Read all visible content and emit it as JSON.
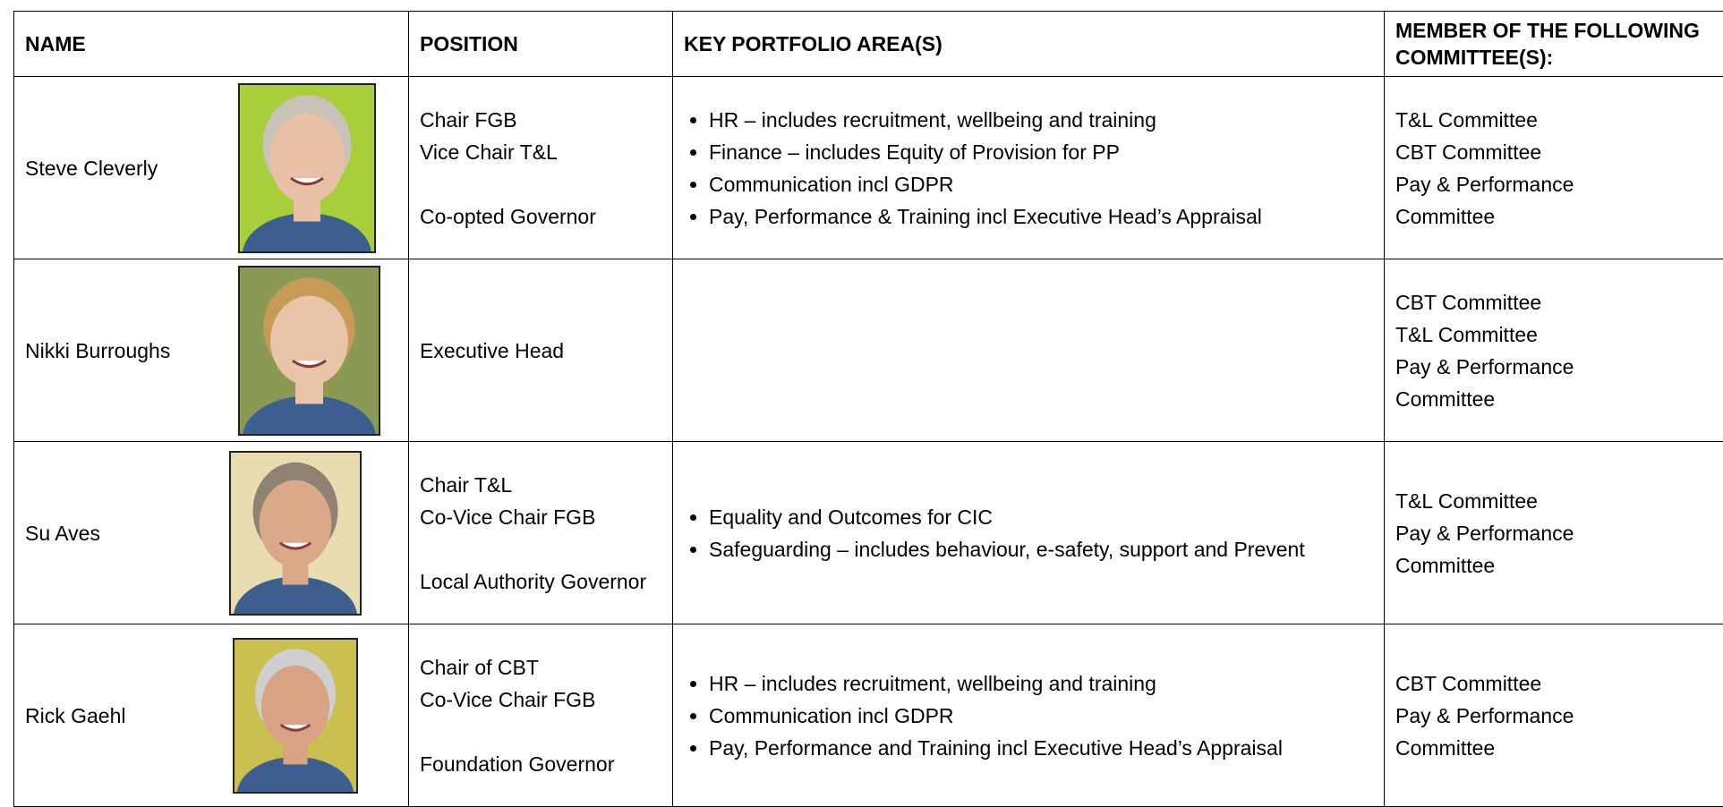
{
  "table": {
    "headers": [
      "NAME",
      "POSITION",
      "KEY PORTFOLIO AREA(S)",
      "MEMBER OF THE FOLLOWING COMMITTEE(S):"
    ],
    "rows": [
      {
        "name": "Steve Cleverly",
        "roles": [
          "Chair FGB",
          "Vice Chair T&L"
        ],
        "category": "Co-opted Governor",
        "portfolio": [
          "HR – includes recruitment, wellbeing and training",
          "Finance – includes Equity of Provision for PP",
          "Communication incl GDPR",
          "Pay, Performance & Training incl Executive Head’s Appraisal"
        ],
        "committees": [
          "T&L Committee",
          "CBT Committee",
          "Pay & Performance Committee"
        ]
      },
      {
        "name": "Nikki Burroughs",
        "roles": [
          "Executive Head"
        ],
        "committees": [
          "CBT Committee",
          "T&L Committee",
          "Pay & Performance Committee"
        ]
      },
      {
        "name": "Su Aves",
        "roles": [
          "Chair T&L",
          "Co-Vice Chair FGB"
        ],
        "category": "Local Authority Governor",
        "portfolio": [
          "Equality and Outcomes for CIC",
          "Safeguarding – includes behaviour, e-safety, support and Prevent"
        ],
        "committees": [
          "T&L Committee",
          "Pay & Performance Committee"
        ]
      },
      {
        "name": "Rick Gaehl",
        "roles": [
          "Chair of CBT",
          "Co-Vice Chair FGB"
        ],
        "category": "Foundation Governor",
        "portfolio": [
          "HR – includes recruitment, wellbeing and training",
          "Communication incl GDPR",
          "Pay, Performance and Training incl Executive Head’s Appraisal"
        ],
        "committees": [
          "CBT Committee",
          "Pay & Performance Committee"
        ]
      }
    ]
  }
}
